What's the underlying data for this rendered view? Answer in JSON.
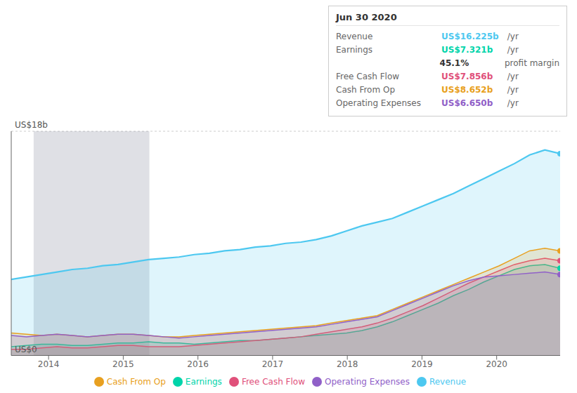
{
  "chart_data": {
    "type": "area",
    "x": [
      2013.5,
      2013.704167,
      2013.908333,
      2014.1125,
      2014.316667,
      2014.520833,
      2014.725,
      2014.929167,
      2015.133333,
      2015.3375,
      2015.541667,
      2015.745833,
      2015.95,
      2016.154167,
      2016.358333,
      2016.5625,
      2016.766667,
      2016.970833,
      2017.175,
      2017.379167,
      2017.583333,
      2017.7875,
      2017.991667,
      2018.195833,
      2018.4,
      2018.604167,
      2018.808333,
      2019.0125,
      2019.216667,
      2019.420833,
      2019.625,
      2019.829167,
      2020.033333,
      2020.2375,
      2020.441667,
      2020.645833,
      2020.85
    ],
    "series": [
      {
        "name": "Revenue",
        "color": "#4dc8f0",
        "values": [
          6.1,
          6.3,
          6.5,
          6.7,
          6.9,
          7.0,
          7.2,
          7.3,
          7.5,
          7.7,
          7.8,
          7.9,
          8.1,
          8.2,
          8.4,
          8.5,
          8.7,
          8.8,
          9.0,
          9.1,
          9.3,
          9.6,
          10.0,
          10.4,
          10.7,
          11.0,
          11.5,
          12.0,
          12.5,
          13.0,
          13.6,
          14.2,
          14.8,
          15.4,
          16.1,
          16.5,
          16.2
        ]
      },
      {
        "name": "Earnings",
        "color": "#00d4aa",
        "values": [
          0.7,
          0.8,
          0.9,
          0.9,
          0.8,
          0.8,
          0.9,
          1.0,
          1.0,
          1.1,
          1.0,
          1.0,
          0.9,
          1.0,
          1.1,
          1.2,
          1.2,
          1.3,
          1.4,
          1.5,
          1.6,
          1.7,
          1.8,
          2.0,
          2.3,
          2.7,
          3.2,
          3.7,
          4.2,
          4.8,
          5.3,
          5.9,
          6.4,
          6.9,
          7.2,
          7.3,
          7.0
        ]
      },
      {
        "name": "Free Cash Flow",
        "color": "#e0507a",
        "values": [
          0.5,
          0.5,
          0.6,
          0.7,
          0.6,
          0.6,
          0.7,
          0.8,
          0.8,
          0.7,
          0.7,
          0.7,
          0.8,
          0.9,
          1.0,
          1.1,
          1.2,
          1.3,
          1.4,
          1.5,
          1.7,
          1.9,
          2.1,
          2.3,
          2.6,
          3.0,
          3.5,
          4.0,
          4.6,
          5.2,
          5.8,
          6.3,
          6.8,
          7.3,
          7.6,
          7.8,
          7.6
        ]
      },
      {
        "name": "Cash From Op",
        "color": "#e8a020",
        "values": [
          1.8,
          1.7,
          1.6,
          1.7,
          1.6,
          1.5,
          1.6,
          1.7,
          1.7,
          1.6,
          1.5,
          1.5,
          1.6,
          1.7,
          1.8,
          1.9,
          2.0,
          2.1,
          2.2,
          2.3,
          2.4,
          2.6,
          2.8,
          3.0,
          3.2,
          3.7,
          4.2,
          4.7,
          5.2,
          5.7,
          6.2,
          6.7,
          7.2,
          7.8,
          8.4,
          8.6,
          8.4
        ]
      },
      {
        "name": "Operating Expenses",
        "color": "#9060c8",
        "values": [
          1.6,
          1.5,
          1.6,
          1.7,
          1.6,
          1.5,
          1.6,
          1.7,
          1.7,
          1.6,
          1.5,
          1.4,
          1.5,
          1.6,
          1.7,
          1.8,
          1.9,
          2.0,
          2.1,
          2.2,
          2.3,
          2.5,
          2.7,
          2.9,
          3.1,
          3.6,
          4.1,
          4.6,
          5.1,
          5.6,
          6.0,
          6.3,
          6.4,
          6.5,
          6.6,
          6.7,
          6.5
        ]
      }
    ],
    "xlim": [
      2013.5,
      2020.85
    ],
    "xticks": [
      2014,
      2015,
      2016,
      2017,
      2018,
      2019,
      2020
    ],
    "ylim": [
      0,
      18
    ],
    "yticks": [
      0,
      6,
      12,
      18
    ],
    "grid": true,
    "tick_labels": "x",
    "legend": "bottom",
    "annotations": [
      {
        "text": "US$18b",
        "y": 18
      },
      {
        "text": "US$0",
        "y": 0
      }
    ],
    "highlight": {
      "x": [
        2013.8,
        2015.35
      ],
      "color": "#263050"
    },
    "tooltip": {
      "title": "Jun 30 2020",
      "rows": [
        {
          "label": "Revenue",
          "value": "US$16.225b",
          "suffix": " /yr",
          "color": "#4dc8f0"
        },
        {
          "label": "Earnings",
          "value": "US$7.321b",
          "suffix": " /yr",
          "color": "#00d4aa"
        },
        {
          "value": "45.1%",
          "suffix": " profit margin"
        },
        {
          "label": "Free Cash Flow",
          "value": "US$7.856b",
          "suffix": " /yr",
          "color": "#e0507a"
        },
        {
          "label": "Cash From Op",
          "value": "US$8.652b",
          "suffix": " /yr",
          "color": "#e8a020"
        },
        {
          "label": "Operating Expenses",
          "value": "US$6.650b",
          "suffix": " /yr",
          "color": "#9060c8"
        }
      ]
    }
  }
}
